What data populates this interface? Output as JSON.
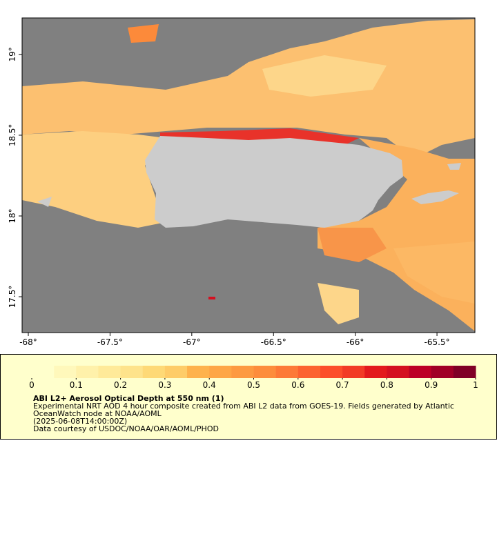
{
  "map": {
    "xlim": [
      -68.038,
      -65.268
    ],
    "ylim": [
      17.278,
      19.226
    ],
    "xticks": [
      {
        "value": -68,
        "label": "-68°"
      },
      {
        "value": -67.5,
        "label": "-67.5°"
      },
      {
        "value": -67,
        "label": "-67°"
      },
      {
        "value": -66.5,
        "label": "-66.5°"
      },
      {
        "value": -66,
        "label": "-66°"
      },
      {
        "value": -65.5,
        "label": "-65.5°"
      }
    ],
    "yticks": [
      {
        "value": 17.5,
        "label": "17.5°"
      },
      {
        "value": 18,
        "label": "18°"
      },
      {
        "value": 18.5,
        "label": "18.5°"
      },
      {
        "value": 19,
        "label": "19°"
      }
    ]
  },
  "colorbar": {
    "range": [
      0,
      1
    ],
    "ticks": [
      0,
      0.1,
      0.2,
      0.3,
      0.4,
      0.5,
      0.6,
      0.7,
      0.8,
      0.9,
      1
    ],
    "colors": [
      "#ffffcc",
      "#fff8bb",
      "#fff1aa",
      "#ffea99",
      "#fee38b",
      "#fed976",
      "#fecc68",
      "#feb24c",
      "#fea646",
      "#fd9a41",
      "#fd8d3c",
      "#fd7a37",
      "#fc6330",
      "#fc4e2a",
      "#f23b25",
      "#e31a1c",
      "#d41020",
      "#bd0026",
      "#a10026",
      "#800026"
    ]
  },
  "legend": {
    "title": "ABI L2+ Aerosol Optical Depth at 550 nm (1)",
    "lines": [
      "Experimental NRT AOD 4 hour composite created from ABI L2 data from GOES-19. Fields generated by Atlantic",
      "OceanWatch node at NOAA/AOML",
      "(2025-06-08T14:00:00Z)",
      "Data courtesy of USDOC/NOAA/OAR/AOML/PHOD"
    ]
  }
}
